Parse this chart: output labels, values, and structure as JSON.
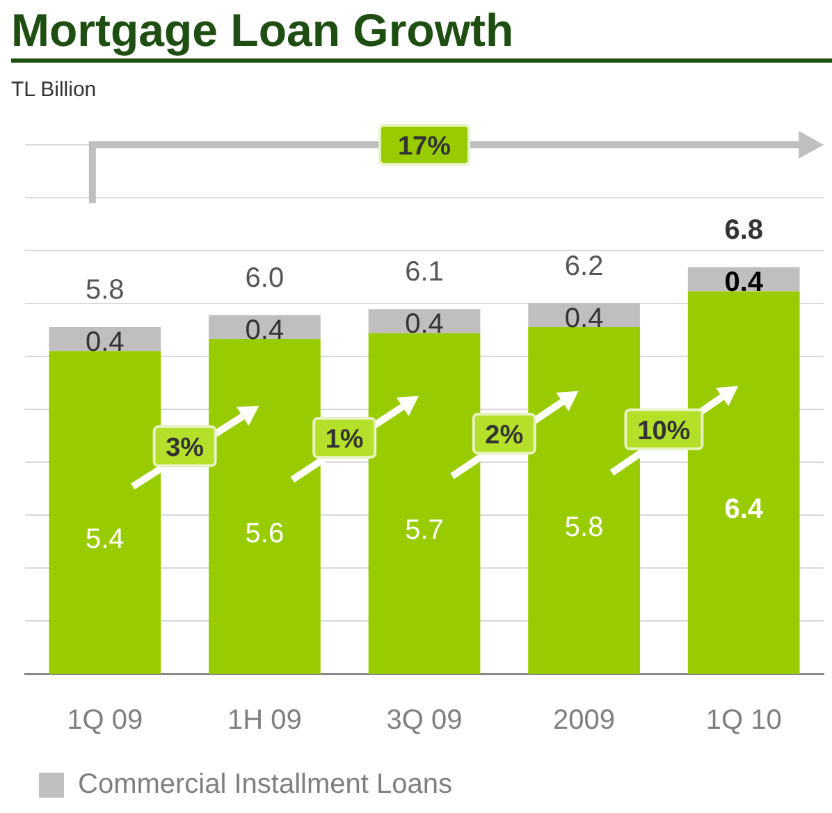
{
  "chart_data": {
    "type": "bar",
    "title": "Mortgage Loan Growth",
    "subtitle": "TL Billion",
    "categories": [
      "1Q 09",
      "1H 09",
      "3Q 09",
      "2009",
      "1Q 10"
    ],
    "series": [
      {
        "color": "#99cc00",
        "values": [
          5.4,
          5.6,
          5.7,
          5.8,
          6.4
        ]
      },
      {
        "name": "Commercial Installment Loans",
        "color": "#bfbfbf",
        "values": [
          0.4,
          0.4,
          0.4,
          0.4,
          0.4
        ]
      }
    ],
    "stacked": true,
    "data_labels": true,
    "totals": [
      "5.8",
      "6.0",
      "6.1",
      "6.2",
      "6.8"
    ],
    "annotations": [
      "17%",
      "3%",
      "1%",
      "2%",
      "10%"
    ],
    "ylim": [
      0,
      8.85
    ],
    "yticks": [
      {
        "value": 0.88,
        "label": null
      },
      {
        "value": 1.77,
        "label": null
      },
      {
        "value": 2.65,
        "label": null
      },
      {
        "value": 3.54,
        "label": null
      },
      {
        "value": 4.42,
        "label": null
      },
      {
        "value": 5.31,
        "label": null
      },
      {
        "value": 6.19,
        "label": null
      },
      {
        "value": 7.08,
        "label": null
      },
      {
        "value": 7.96,
        "label": null
      },
      {
        "value": 8.85,
        "label": null
      }
    ],
    "tick_labels": "x",
    "grid": "y",
    "legend": "bottom"
  }
}
